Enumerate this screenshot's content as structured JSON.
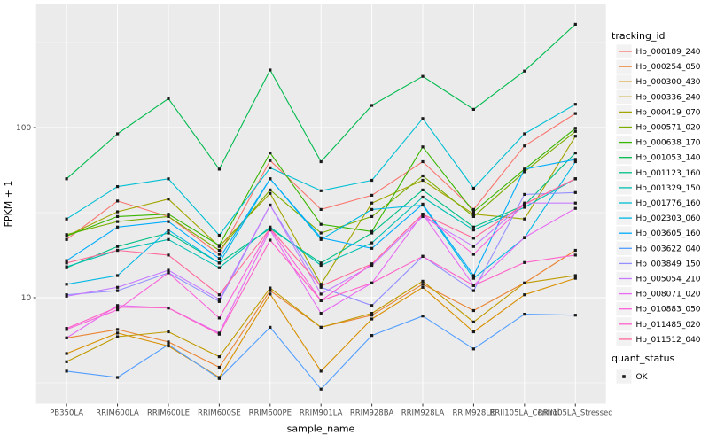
{
  "figure": {
    "x_axis": {
      "label": "sample_name"
    },
    "y_axis": {
      "label": "FPKM + 1"
    },
    "legend_tracking": {
      "title": "tracking_id"
    },
    "legend_quant": {
      "title": "quant_status",
      "entries": [
        {
          "label": "OK"
        }
      ]
    }
  },
  "style": {
    "panel_bg": "#EBEBEB",
    "grid_color": "#FFFFFF",
    "tick_color": "#333333",
    "axis_text_color": "#4D4D4D",
    "title_text_color": "#000000",
    "legend_key_bg": "#F2F2F2",
    "marker_color": "#1a1a1a"
  },
  "chart_data": {
    "type": "line",
    "x_type": "categorical",
    "y_scale": "log10",
    "title": "",
    "xlabel": "sample_name",
    "ylabel": "FPKM + 1",
    "ylim": [
      2.4,
      490
    ],
    "y_major_ticks": [
      {
        "label": "100",
        "value": 100
      },
      {
        "label": "10",
        "value": 10
      }
    ],
    "y_minor_gridlines": [
      3.162,
      31.62,
      316.2
    ],
    "grid": true,
    "legend_position": "right",
    "point_marker": {
      "shape": "square",
      "color": "#1a1a1a",
      "legend_title": "quant_status",
      "label": "OK"
    },
    "categories": [
      "PB350LA",
      "RRIM600LA",
      "RRIM600LE",
      "RRIM600SE",
      "RRIM600PE",
      "RRIM901LA",
      "RRIM928BA",
      "RRIM928LA",
      "RRIM928LE",
      "RRII105LA_Control",
      "RRII105LA_Stressed"
    ],
    "series": [
      {
        "name": "Hb_000189_240",
        "color": "#F8766D",
        "values": [
          22,
          37,
          30,
          18,
          64,
          33,
          40,
          63,
          33,
          78,
          121
        ]
      },
      {
        "name": "Hb_000254_050",
        "color": "#EA8331",
        "values": [
          5.8,
          6.5,
          5.5,
          3.9,
          11,
          6.7,
          7.9,
          12,
          8.4,
          12.2,
          19
        ]
      },
      {
        "name": "Hb_000300_430",
        "color": "#D89000",
        "values": [
          4.7,
          6.2,
          5.2,
          3.4,
          10.5,
          3.7,
          7.5,
          11.5,
          6.3,
          10.4,
          13
        ]
      },
      {
        "name": "Hb_000336_240",
        "color": "#C09B00",
        "values": [
          4.2,
          5.9,
          6.3,
          4.5,
          11.4,
          6.7,
          8.1,
          12.5,
          7.2,
          12.2,
          13.5
        ]
      },
      {
        "name": "Hb_000419_070",
        "color": "#A3A500",
        "values": [
          23,
          32,
          38,
          20,
          41,
          12,
          36,
          49,
          31,
          29,
          89
        ]
      },
      {
        "name": "Hb_000571_020",
        "color": "#7CAE00",
        "values": [
          23.5,
          28,
          30,
          19,
          43,
          24,
          30,
          52,
          30,
          55,
          95
        ]
      },
      {
        "name": "Hb_000638_170",
        "color": "#39B600",
        "values": [
          23,
          30,
          31,
          20.3,
          71,
          27,
          24.5,
          77,
          32,
          57,
          99
        ]
      },
      {
        "name": "Hb_001053_140",
        "color": "#00BB4E",
        "values": [
          50,
          92,
          148,
          57,
          218,
          63,
          135,
          200,
          128,
          215,
          405
        ]
      },
      {
        "name": "Hb_001123_160",
        "color": "#00C087",
        "values": [
          15,
          20,
          24,
          16,
          25.5,
          16,
          24,
          43,
          26,
          35,
          71
        ]
      },
      {
        "name": "Hb_001329_150",
        "color": "#00C0B2",
        "values": [
          15.2,
          19,
          22,
          15,
          26,
          15.5,
          21,
          39,
          25,
          34,
          50
        ]
      },
      {
        "name": "Hb_001776_160",
        "color": "#00BFD3",
        "values": [
          29,
          45,
          50,
          23.3,
          58,
          42.5,
          49,
          113,
          44,
          92,
          137
        ]
      },
      {
        "name": "Hb_002303_060",
        "color": "#00B8E5",
        "values": [
          12,
          13.5,
          25,
          16,
          50,
          22,
          33,
          35,
          13,
          22.5,
          63
        ]
      },
      {
        "name": "Hb_003605_160",
        "color": "#00ACFC",
        "values": [
          16.5,
          26,
          28,
          17,
          50,
          22.5,
          19.5,
          35.5,
          13.5,
          57,
          65
        ]
      },
      {
        "name": "Hb_003622_040",
        "color": "#529EFF",
        "values": [
          3.7,
          3.4,
          5.3,
          3.35,
          6.7,
          2.9,
          6.0,
          7.8,
          5.0,
          8.0,
          7.9
        ]
      },
      {
        "name": "Hb_003849_150",
        "color": "#9590FF",
        "values": [
          10.4,
          11,
          14,
          9.5,
          35,
          11.5,
          9.0,
          17.5,
          11,
          40.5,
          41.5
        ]
      },
      {
        "name": "Hb_005054_210",
        "color": "#C77CFF",
        "values": [
          10.2,
          11.5,
          14.5,
          9.8,
          35,
          10.5,
          15.5,
          30,
          20,
          36,
          36
        ]
      },
      {
        "name": "Hb_008071_020",
        "color": "#E76BF3",
        "values": [
          5.8,
          9.0,
          8.7,
          6.2,
          25,
          8.1,
          12.2,
          31,
          11.8,
          22.6,
          33.5
        ]
      },
      {
        "name": "Hb_010883_050",
        "color": "#FA62DB",
        "values": [
          6.5,
          8.5,
          14,
          7.6,
          25.5,
          9.6,
          15.8,
          31,
          18,
          35.5,
          50
        ]
      },
      {
        "name": "Hb_011485_020",
        "color": "#FF61C9",
        "values": [
          6.6,
          8.8,
          8.7,
          6.1,
          21.8,
          9.6,
          12.2,
          17.5,
          11.8,
          16.1,
          17.8
        ]
      },
      {
        "name": "Hb_011512_040",
        "color": "#FF6A98",
        "values": [
          16,
          19,
          17.8,
          10.4,
          25.5,
          11.7,
          15.8,
          31,
          22.4,
          35.5,
          50
        ]
      }
    ]
  }
}
